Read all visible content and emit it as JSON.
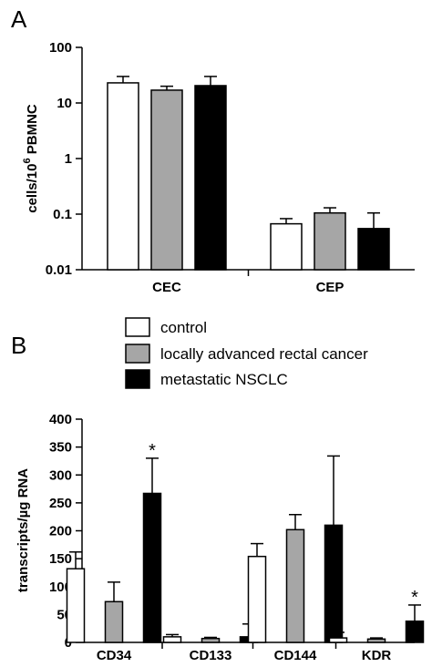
{
  "panels": {
    "a_label": "A",
    "b_label": "B"
  },
  "legend": {
    "entries": [
      {
        "name": "control",
        "color": "#ffffff"
      },
      {
        "name": "locally advanced rectal cancer",
        "color": "#a6a6a6"
      },
      {
        "name": "metastatic NSCLC",
        "color": "#000000"
      }
    ]
  },
  "chart_data": [
    {
      "type": "bar",
      "panel": "A",
      "yscale": "log",
      "ylim": [
        0.01,
        100
      ],
      "yticks": [
        "0.01",
        "0.1",
        "1",
        "10",
        "100"
      ],
      "ylabel_parts": {
        "pre": "cells/10",
        "sup": "6",
        "post": " PBMNC"
      },
      "categories": [
        "CEC",
        "CEP"
      ],
      "series": [
        {
          "name": "control",
          "values": [
            23,
            0.067
          ],
          "errors": [
            30,
            0.083
          ]
        },
        {
          "name": "locally advanced rectal cancer",
          "values": [
            17,
            0.105
          ],
          "errors": [
            20,
            0.13
          ]
        },
        {
          "name": "metastatic NSCLC",
          "values": [
            20.5,
            0.055
          ],
          "errors": [
            30,
            0.105
          ]
        }
      ],
      "colors": [
        "#ffffff",
        "#a6a6a6",
        "#000000"
      ]
    },
    {
      "type": "bar",
      "panel": "B",
      "yscale": "linear",
      "ylim": [
        0,
        400
      ],
      "yticks": [
        "0",
        "50",
        "100",
        "150",
        "200",
        "250",
        "300",
        "350",
        "400"
      ],
      "ylabel": "transcripts/µg RNA",
      "categories": [
        "CD34",
        "CD133",
        "CD144",
        "KDR"
      ],
      "series": [
        {
          "name": "control",
          "values": [
            132,
            10,
            154,
            8
          ],
          "errors": [
            162,
            14,
            177,
            18
          ]
        },
        {
          "name": "locally advanced rectal cancer",
          "values": [
            73,
            7,
            202,
            6
          ],
          "errors": [
            108,
            9,
            229,
            8
          ]
        },
        {
          "name": "metastatic NSCLC",
          "values": [
            267,
            10,
            210,
            38
          ],
          "errors": [
            330,
            33,
            334,
            67
          ]
        }
      ],
      "colors": [
        "#ffffff",
        "#a6a6a6",
        "#000000"
      ],
      "annotations": [
        {
          "category": "CD34",
          "series": "metastatic NSCLC",
          "text": "*"
        },
        {
          "category": "KDR",
          "series": "metastatic NSCLC",
          "text": "*"
        }
      ]
    }
  ]
}
